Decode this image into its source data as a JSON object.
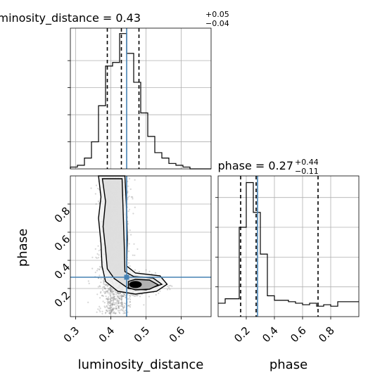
{
  "chart_data": {
    "type": "corner",
    "parameters": [
      "luminosity_distance",
      "phase"
    ],
    "titles": {
      "luminosity_distance": {
        "name": "luminosity_distance",
        "value": "0.43",
        "plus": "+0.05",
        "minus": "−0.04"
      },
      "phase": {
        "name": "phase",
        "value": "0.27",
        "plus": "+0.44",
        "minus": "−0.11"
      }
    },
    "truths": {
      "luminosity_distance": 0.445,
      "phase": 0.28
    },
    "quantiles": {
      "luminosity_distance": [
        0.39,
        0.43,
        0.48
      ],
      "phase": [
        0.16,
        0.27,
        0.71
      ]
    },
    "xlabel_left": "luminosity_distance",
    "xlabel_right": "phase",
    "ylabel_lower": "phase",
    "ld_range": [
      0.285,
      0.685
    ],
    "phase_range": [
      0.0,
      1.0
    ],
    "ld_ticks": [
      "0.3",
      "0.4",
      "0.5",
      "0.6"
    ],
    "phase_ticks": [
      "0.2",
      "0.4",
      "0.6",
      "0.8"
    ],
    "hist_ld": {
      "edges": [
        0.285,
        0.305,
        0.325,
        0.345,
        0.365,
        0.385,
        0.405,
        0.425,
        0.445,
        0.465,
        0.485,
        0.505,
        0.525,
        0.545,
        0.565,
        0.585,
        0.605,
        0.625,
        0.645,
        0.665,
        0.685
      ],
      "counts": [
        1,
        2,
        6,
        15,
        35,
        57,
        59,
        75,
        64,
        48,
        31,
        18,
        9,
        6,
        3,
        2,
        1,
        0,
        0,
        0
      ]
    },
    "hist_phase": {
      "edges": [
        0.0,
        0.05,
        0.1,
        0.15,
        0.2,
        0.25,
        0.3,
        0.35,
        0.4,
        0.45,
        0.5,
        0.55,
        0.6,
        0.65,
        0.7,
        0.75,
        0.8,
        0.85,
        0.9,
        0.95,
        1.0
      ],
      "counts": [
        9,
        12,
        12,
        60,
        90,
        70,
        42,
        14,
        11,
        11,
        10,
        9,
        8,
        9,
        7,
        8,
        7,
        10,
        10,
        10
      ]
    },
    "grid": true
  }
}
